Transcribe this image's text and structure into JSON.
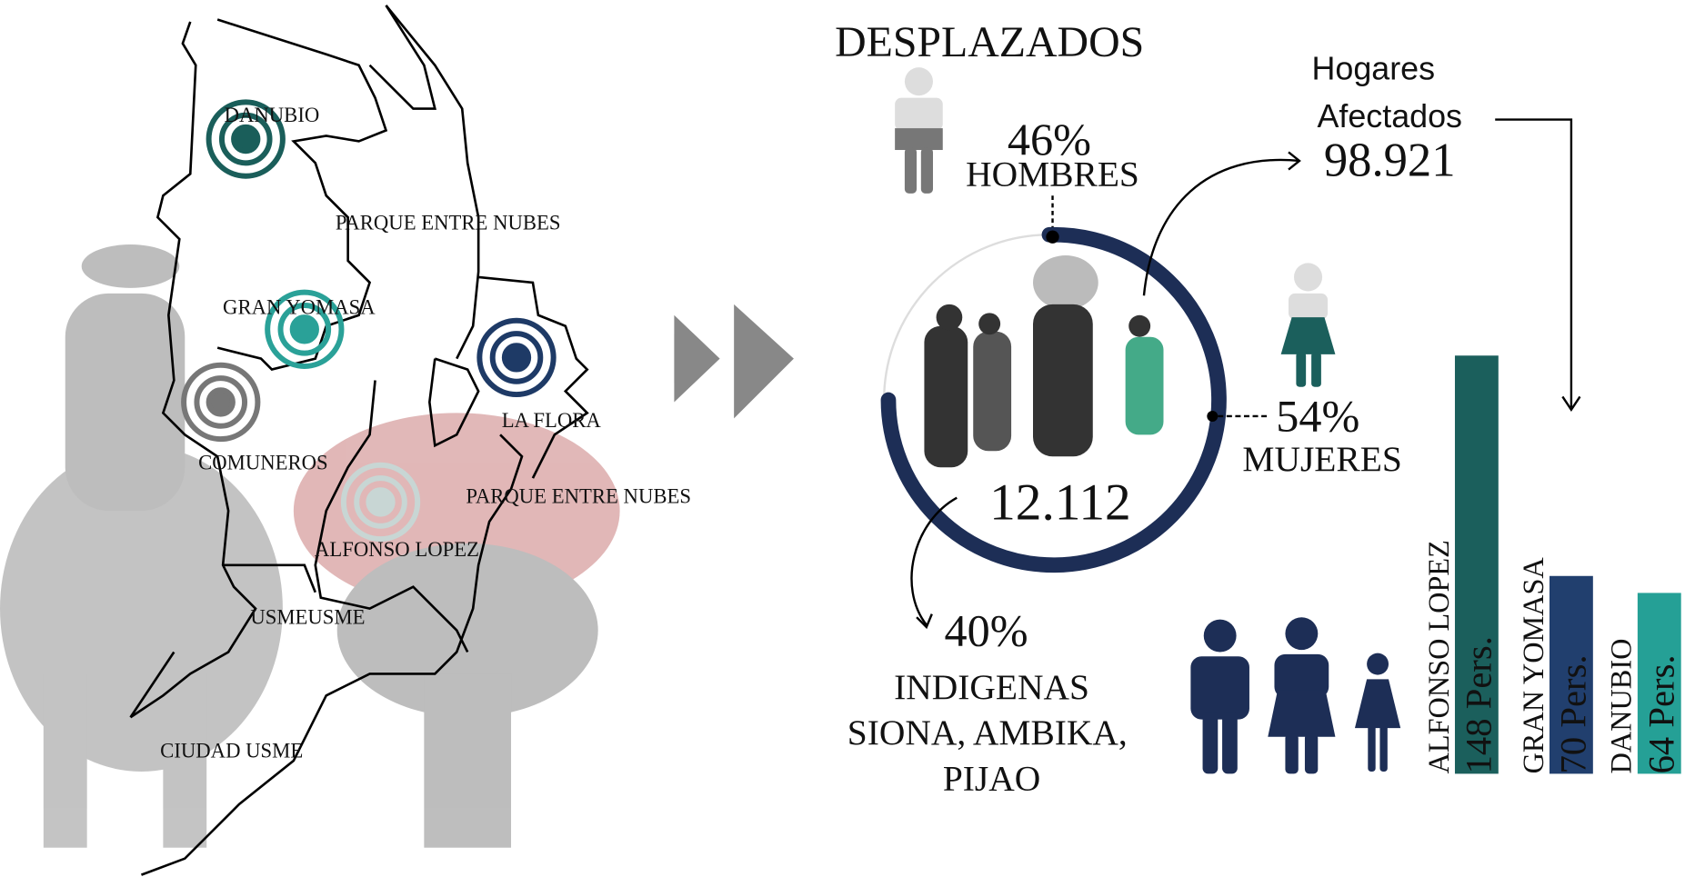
{
  "map": {
    "labels": [
      "DANUBIO",
      "PARQUE ENTRE NUBES",
      "GRAN YOMASA",
      "LA FLORA",
      "COMUNEROS",
      "PARQUE ENTRE NUBES",
      "ALFONSO LOPEZ",
      "USMEUSME",
      "CIUDAD USME"
    ]
  },
  "stats": {
    "title": "DESPLAZADOS",
    "men_pct": "46%",
    "men_label": "HOMBRES",
    "total": "12.112",
    "women_pct": "54%",
    "women_label": "MUJERES",
    "households_line1": "Hogares",
    "households_line2": "Afectados",
    "households_value": "98.921",
    "indigenous_pct": "40%",
    "indigenous_line1": "INDIGENAS",
    "indigenous_line2": "SIONA, AMBIKA,",
    "indigenous_line3": "PIJAO"
  },
  "bars": {
    "categories": [
      "ALFONSO LOPEZ",
      "GRAN YOMASA",
      "DANUBIO"
    ],
    "values": [
      148,
      70,
      64
    ],
    "value_labels": [
      "148 Pers.",
      "70 Pers.",
      "64 Pers."
    ],
    "colors": [
      "#1b5f5c",
      "#213f6e",
      "#25a096"
    ]
  }
}
